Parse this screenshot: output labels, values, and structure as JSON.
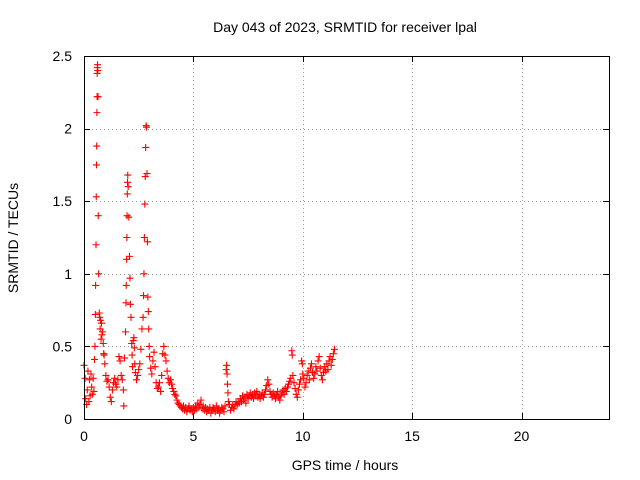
{
  "chart_data": {
    "type": "scatter",
    "title": "Day 043 of 2023, SRMTID for receiver lpal",
    "xlabel": "GPS time / hours",
    "ylabel": "SRMTID / TECUs",
    "xlim": [
      0,
      24
    ],
    "ylim": [
      0,
      2.5
    ],
    "xticks": [
      0,
      5,
      10,
      15,
      20
    ],
    "yticks": [
      0,
      0.5,
      1,
      1.5,
      2,
      2.5
    ],
    "xtick_labels": [
      "0",
      "5",
      "10",
      "15",
      "20"
    ],
    "ytick_labels": [
      "0",
      "0.5",
      "1",
      "1.5",
      "2",
      "2.5"
    ],
    "grid": true,
    "marker": "+",
    "series": [
      {
        "name": "SRMTID",
        "color": "#ff0000",
        "points": [
          [
            0.0,
            0.37
          ],
          [
            0.05,
            0.28
          ],
          [
            0.08,
            0.14
          ],
          [
            0.12,
            0.1
          ],
          [
            0.15,
            0.2
          ],
          [
            0.18,
            0.33
          ],
          [
            0.22,
            0.12
          ],
          [
            0.25,
            0.27
          ],
          [
            0.28,
            0.16
          ],
          [
            0.32,
            0.31
          ],
          [
            0.35,
            0.22
          ],
          [
            0.38,
            0.17
          ],
          [
            0.42,
            0.28
          ],
          [
            0.45,
            0.19
          ],
          [
            0.48,
            0.41
          ],
          [
            0.5,
            0.5
          ],
          [
            0.52,
            0.72
          ],
          [
            0.53,
            0.92
          ],
          [
            0.55,
            1.2
          ],
          [
            0.56,
            1.53
          ],
          [
            0.57,
            1.75
          ],
          [
            0.58,
            1.88
          ],
          [
            0.59,
            2.11
          ],
          [
            0.6,
            2.22
          ],
          [
            0.6,
            2.38
          ],
          [
            0.61,
            2.42
          ],
          [
            0.62,
            2.44
          ],
          [
            0.63,
            2.4
          ],
          [
            0.64,
            2.22
          ],
          [
            0.65,
            1.4
          ],
          [
            0.67,
            1.0
          ],
          [
            0.7,
            0.73
          ],
          [
            0.72,
            0.7
          ],
          [
            0.74,
            0.62
          ],
          [
            0.76,
            0.68
          ],
          [
            0.78,
            0.55
          ],
          [
            0.8,
            0.66
          ],
          [
            0.82,
            0.58
          ],
          [
            0.85,
            0.6
          ],
          [
            0.88,
            0.52
          ],
          [
            0.9,
            0.45
          ],
          [
            0.92,
            0.44
          ],
          [
            0.95,
            0.38
          ],
          [
            1.0,
            0.3
          ],
          [
            1.05,
            0.26
          ],
          [
            1.1,
            0.27
          ],
          [
            1.15,
            0.22
          ],
          [
            1.2,
            0.15
          ],
          [
            1.25,
            0.12
          ],
          [
            1.3,
            0.2
          ],
          [
            1.35,
            0.25
          ],
          [
            1.4,
            0.28
          ],
          [
            1.45,
            0.24
          ],
          [
            1.5,
            0.22
          ],
          [
            1.55,
            0.27
          ],
          [
            1.6,
            0.43
          ],
          [
            1.65,
            0.4
          ],
          [
            1.7,
            0.3
          ],
          [
            1.75,
            0.27
          ],
          [
            1.8,
            0.2
          ],
          [
            1.82,
            0.09
          ],
          [
            1.85,
            0.42
          ],
          [
            1.9,
            0.6
          ],
          [
            1.92,
            0.8
          ],
          [
            1.93,
            0.92
          ],
          [
            1.95,
            1.1
          ],
          [
            1.96,
            1.25
          ],
          [
            1.97,
            1.4
          ],
          [
            1.98,
            1.55
          ],
          [
            1.99,
            1.63
          ],
          [
            2.0,
            1.68
          ],
          [
            2.02,
            1.6
          ],
          [
            2.05,
            1.39
          ],
          [
            2.08,
            1.12
          ],
          [
            2.1,
            0.97
          ],
          [
            2.12,
            0.79
          ],
          [
            2.15,
            0.7
          ],
          [
            2.18,
            0.52
          ],
          [
            2.2,
            0.44
          ],
          [
            2.22,
            0.36
          ],
          [
            2.25,
            0.54
          ],
          [
            2.28,
            0.56
          ],
          [
            2.3,
            0.49
          ],
          [
            2.32,
            0.38
          ],
          [
            2.35,
            0.32
          ],
          [
            2.4,
            0.27
          ],
          [
            2.45,
            0.3
          ],
          [
            2.5,
            0.34
          ],
          [
            2.55,
            0.38
          ],
          [
            2.6,
            0.48
          ],
          [
            2.65,
            0.62
          ],
          [
            2.7,
            0.7
          ],
          [
            2.72,
            0.85
          ],
          [
            2.74,
            1.0
          ],
          [
            2.76,
            1.25
          ],
          [
            2.78,
            1.48
          ],
          [
            2.8,
            1.67
          ],
          [
            2.82,
            1.87
          ],
          [
            2.84,
            2.02
          ],
          [
            2.86,
            2.01
          ],
          [
            2.88,
            1.69
          ],
          [
            2.9,
            1.22
          ],
          [
            2.92,
            0.84
          ],
          [
            2.94,
            0.74
          ],
          [
            2.96,
            0.62
          ],
          [
            2.98,
            0.5
          ],
          [
            3.0,
            0.43
          ],
          [
            3.05,
            0.35
          ],
          [
            3.1,
            0.31
          ],
          [
            3.15,
            0.4
          ],
          [
            3.2,
            0.46
          ],
          [
            3.25,
            0.36
          ],
          [
            3.3,
            0.25
          ],
          [
            3.35,
            0.21
          ],
          [
            3.4,
            0.22
          ],
          [
            3.45,
            0.25
          ],
          [
            3.5,
            0.19
          ],
          [
            3.55,
            0.3
          ],
          [
            3.6,
            0.45
          ],
          [
            3.65,
            0.5
          ],
          [
            3.7,
            0.44
          ],
          [
            3.75,
            0.4
          ],
          [
            3.8,
            0.33
          ],
          [
            3.85,
            0.28
          ],
          [
            3.9,
            0.25
          ],
          [
            3.95,
            0.27
          ],
          [
            4.0,
            0.24
          ],
          [
            4.05,
            0.21
          ],
          [
            4.1,
            0.19
          ],
          [
            4.15,
            0.17
          ],
          [
            4.2,
            0.16
          ],
          [
            4.25,
            0.13
          ],
          [
            4.3,
            0.11
          ],
          [
            4.35,
            0.1
          ],
          [
            4.4,
            0.09
          ],
          [
            4.45,
            0.08
          ],
          [
            4.5,
            0.07
          ],
          [
            4.55,
            0.09
          ],
          [
            4.6,
            0.06
          ],
          [
            4.65,
            0.08
          ],
          [
            4.7,
            0.05
          ],
          [
            4.75,
            0.07
          ],
          [
            4.8,
            0.09
          ],
          [
            4.85,
            0.06
          ],
          [
            4.9,
            0.07
          ],
          [
            4.95,
            0.05
          ],
          [
            5.0,
            0.08
          ],
          [
            5.05,
            0.06
          ],
          [
            5.1,
            0.09
          ],
          [
            5.15,
            0.07
          ],
          [
            5.2,
            0.11
          ],
          [
            5.25,
            0.08
          ],
          [
            5.3,
            0.1
          ],
          [
            5.35,
            0.13
          ],
          [
            5.4,
            0.07
          ],
          [
            5.45,
            0.09
          ],
          [
            5.5,
            0.06
          ],
          [
            5.55,
            0.08
          ],
          [
            5.6,
            0.05
          ],
          [
            5.65,
            0.07
          ],
          [
            5.7,
            0.06
          ],
          [
            5.75,
            0.08
          ],
          [
            5.8,
            0.04
          ],
          [
            5.85,
            0.06
          ],
          [
            5.9,
            0.08
          ],
          [
            5.95,
            0.07
          ],
          [
            6.0,
            0.05
          ],
          [
            6.05,
            0.09
          ],
          [
            6.1,
            0.06
          ],
          [
            6.15,
            0.07
          ],
          [
            6.2,
            0.04
          ],
          [
            6.25,
            0.06
          ],
          [
            6.3,
            0.08
          ],
          [
            6.35,
            0.07
          ],
          [
            6.4,
            0.05
          ],
          [
            6.45,
            0.09
          ],
          [
            6.5,
            0.34
          ],
          [
            6.52,
            0.37
          ],
          [
            6.54,
            0.31
          ],
          [
            6.56,
            0.24
          ],
          [
            6.58,
            0.18
          ],
          [
            6.6,
            0.12
          ],
          [
            6.65,
            0.1
          ],
          [
            6.7,
            0.06
          ],
          [
            6.75,
            0.08
          ],
          [
            6.8,
            0.1
          ],
          [
            6.85,
            0.07
          ],
          [
            6.9,
            0.09
          ],
          [
            6.95,
            0.12
          ],
          [
            7.0,
            0.1
          ],
          [
            7.05,
            0.12
          ],
          [
            7.1,
            0.11
          ],
          [
            7.15,
            0.14
          ],
          [
            7.2,
            0.12
          ],
          [
            7.25,
            0.16
          ],
          [
            7.3,
            0.13
          ],
          [
            7.35,
            0.15
          ],
          [
            7.4,
            0.11
          ],
          [
            7.45,
            0.17
          ],
          [
            7.5,
            0.14
          ],
          [
            7.55,
            0.16
          ],
          [
            7.6,
            0.18
          ],
          [
            7.65,
            0.15
          ],
          [
            7.7,
            0.17
          ],
          [
            7.75,
            0.14
          ],
          [
            7.8,
            0.18
          ],
          [
            7.85,
            0.16
          ],
          [
            7.9,
            0.19
          ],
          [
            7.95,
            0.15
          ],
          [
            8.0,
            0.17
          ],
          [
            8.05,
            0.14
          ],
          [
            8.1,
            0.16
          ],
          [
            8.15,
            0.18
          ],
          [
            8.2,
            0.15
          ],
          [
            8.25,
            0.17
          ],
          [
            8.3,
            0.2
          ],
          [
            8.35,
            0.23
          ],
          [
            8.4,
            0.27
          ],
          [
            8.45,
            0.24
          ],
          [
            8.5,
            0.19
          ],
          [
            8.55,
            0.17
          ],
          [
            8.6,
            0.15
          ],
          [
            8.65,
            0.18
          ],
          [
            8.7,
            0.16
          ],
          [
            8.75,
            0.14
          ],
          [
            8.8,
            0.17
          ],
          [
            8.85,
            0.19
          ],
          [
            8.9,
            0.15
          ],
          [
            8.95,
            0.13
          ],
          [
            9.0,
            0.16
          ],
          [
            9.05,
            0.18
          ],
          [
            9.1,
            0.2
          ],
          [
            9.15,
            0.17
          ],
          [
            9.2,
            0.21
          ],
          [
            9.25,
            0.19
          ],
          [
            9.3,
            0.22
          ],
          [
            9.35,
            0.24
          ],
          [
            9.4,
            0.26
          ],
          [
            9.45,
            0.28
          ],
          [
            9.5,
            0.47
          ],
          [
            9.52,
            0.44
          ],
          [
            9.55,
            0.3
          ],
          [
            9.6,
            0.25
          ],
          [
            9.65,
            0.21
          ],
          [
            9.7,
            0.17
          ],
          [
            9.75,
            0.15
          ],
          [
            9.8,
            0.2
          ],
          [
            9.85,
            0.24
          ],
          [
            9.9,
            0.27
          ],
          [
            9.95,
            0.4
          ],
          [
            9.98,
            0.38
          ],
          [
            10.0,
            0.31
          ],
          [
            10.05,
            0.28
          ],
          [
            10.1,
            0.22
          ],
          [
            10.15,
            0.25
          ],
          [
            10.2,
            0.3
          ],
          [
            10.25,
            0.33
          ],
          [
            10.3,
            0.27
          ],
          [
            10.35,
            0.35
          ],
          [
            10.4,
            0.38
          ],
          [
            10.45,
            0.32
          ],
          [
            10.5,
            0.28
          ],
          [
            10.55,
            0.31
          ],
          [
            10.6,
            0.36
          ],
          [
            10.65,
            0.33
          ],
          [
            10.7,
            0.4
          ],
          [
            10.75,
            0.43
          ],
          [
            10.8,
            0.35
          ],
          [
            10.85,
            0.3
          ],
          [
            10.9,
            0.27
          ],
          [
            10.95,
            0.32
          ],
          [
            11.0,
            0.36
          ],
          [
            11.05,
            0.33
          ],
          [
            11.1,
            0.38
          ],
          [
            11.15,
            0.34
          ],
          [
            11.2,
            0.4
          ],
          [
            11.25,
            0.43
          ],
          [
            11.3,
            0.37
          ],
          [
            11.35,
            0.41
          ],
          [
            11.4,
            0.45
          ],
          [
            11.45,
            0.48
          ]
        ]
      }
    ]
  }
}
